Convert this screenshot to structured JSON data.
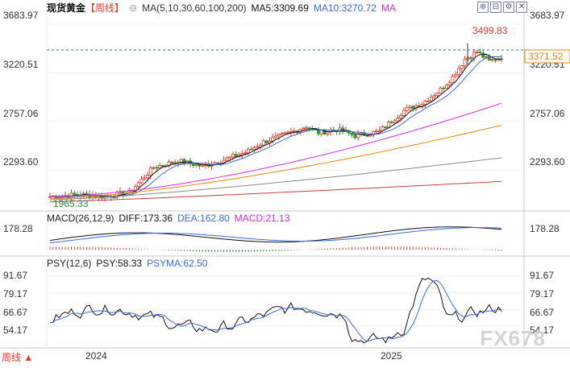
{
  "header": {
    "instrument": "现货黄金",
    "period": "【周线】",
    "indicator_label": "MA(5,10,30,60,100,200)",
    "ma5_label": "MA5:3309.69",
    "ma10_label": "MA10:3270.72",
    "ma_label": "MA"
  },
  "macd_header": {
    "label": "MACD(26,12,9)",
    "diff": "DIFF:173.36",
    "dea": "DEA:162.80",
    "macd": "MACD:21.13"
  },
  "psy_header": {
    "label": "PSY(12,6)",
    "psy": "PSY:58.33",
    "psyma": "PSYMA:62.50"
  },
  "footer": {
    "period_button": "周线 ▲",
    "watermark": "FX678"
  },
  "colors": {
    "up": "#e23a2a",
    "down": "#2f9a3a",
    "ma5": "#111111",
    "ma10": "#3a6bd6",
    "ma30": "#d92bd9",
    "ma60": "#e58a0a",
    "ma100": "#8a8a8a",
    "ma200": "#c94040",
    "diff": "#111111",
    "dea": "#3a6bd6",
    "last": "#e58a0a"
  },
  "icons": [
    "zoom-in-icon",
    "zoom-out-icon",
    "settings-icon",
    "close-icon"
  ],
  "chart_data": [
    {
      "type": "candlestick",
      "title": "现货黄金",
      "y_ticks": [
        "3683.97",
        "3220.51",
        "2757.06",
        "2293.60"
      ],
      "y_tick_values": [
        3683.97,
        3220.51,
        2757.06,
        2293.6
      ],
      "ylim": [
        1980,
        3760
      ],
      "x_ticks": [
        "2024",
        "2025"
      ],
      "annotations": {
        "high": "3499.83",
        "low": "1965.33",
        "last": "3371.52"
      },
      "series": [
        {
          "name": "MA5",
          "ends": [
            2050,
            3309.69
          ]
        },
        {
          "name": "MA10",
          "ends": [
            2040,
            3270.72
          ]
        },
        {
          "name": "MA30",
          "ends": [
            2040,
            2930
          ]
        },
        {
          "name": "MA60",
          "ends": [
            2020,
            2720
          ]
        },
        {
          "name": "MA100",
          "ends": [
            2010,
            2410
          ]
        },
        {
          "name": "MA200",
          "ends": [
            1990,
            2185
          ]
        }
      ]
    },
    {
      "type": "line",
      "title": "MACD(26,12,9)",
      "y_ticks": [
        "178.28"
      ],
      "series": [
        {
          "name": "DIFF",
          "last": 173.36
        },
        {
          "name": "DEA",
          "last": 162.8
        },
        {
          "name": "MACD",
          "last": 21.13
        }
      ]
    },
    {
      "type": "line",
      "title": "PSY(12,6)",
      "y_ticks": [
        "91.67",
        "79.17",
        "66.67",
        "54.17"
      ],
      "y_tick_values": [
        91.67,
        79.17,
        66.67,
        54.17
      ],
      "ylim": [
        38,
        98
      ],
      "series": [
        {
          "name": "PSY",
          "last": 58.33
        },
        {
          "name": "PSYMA",
          "last": 62.5
        }
      ]
    }
  ]
}
